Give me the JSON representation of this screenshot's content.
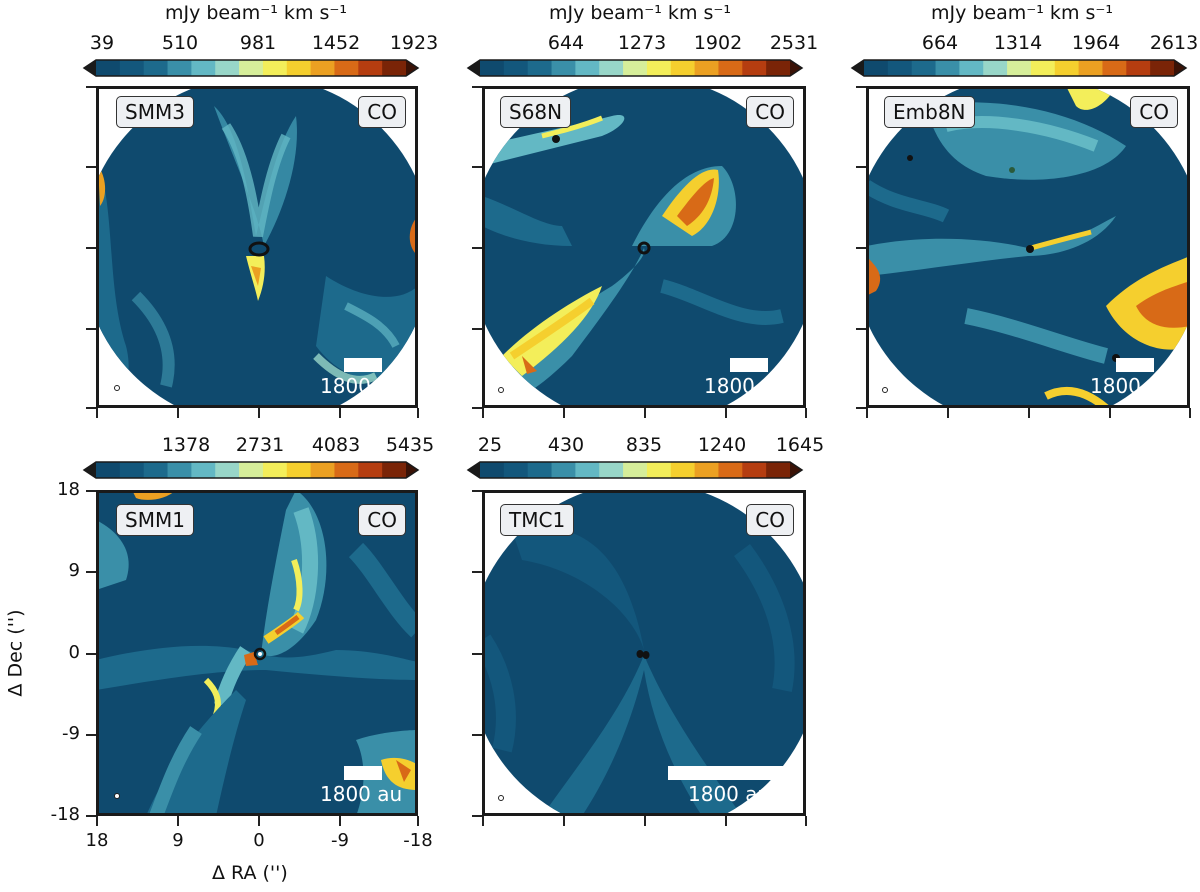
{
  "colorbar_unit": "mJy beam⁻¹ km s⁻¹",
  "line_label": "CO",
  "scale_label": "1800 au",
  "colormap": [
    "#0f4a6e",
    "#13577c",
    "#1d6a8c",
    "#3a8fa8",
    "#63b8c4",
    "#98d6c8",
    "#d6ee9a",
    "#f3ee5a",
    "#f5cf2e",
    "#eba022",
    "#d86a17",
    "#b53d10",
    "#7a2407"
  ],
  "panels": [
    {
      "name": "SMM3",
      "colorbar_ticks": [
        "39",
        "510",
        "981",
        "1452",
        "1923"
      ]
    },
    {
      "name": "S68N",
      "colorbar_ticks": [
        "644",
        "1273",
        "1902",
        "2531"
      ]
    },
    {
      "name": "Emb8N",
      "colorbar_ticks": [
        "664",
        "1314",
        "1964",
        "2613"
      ]
    },
    {
      "name": "SMM1",
      "colorbar_ticks": [
        "1378",
        "2731",
        "4083",
        "5435"
      ]
    },
    {
      "name": "TMC1",
      "colorbar_ticks": [
        "25",
        "430",
        "835",
        "1240",
        "1645"
      ]
    }
  ],
  "axes": {
    "xlabel": "Δ RA ('')",
    "ylabel": "Δ Dec ('')",
    "x_ticks": [
      "18",
      "9",
      "0",
      "-9",
      "-18"
    ],
    "y_ticks": [
      "18",
      "9",
      "0",
      "-9",
      "-18"
    ]
  }
}
